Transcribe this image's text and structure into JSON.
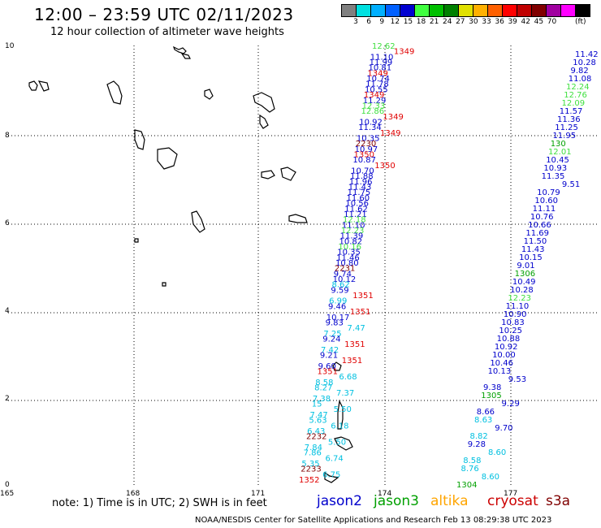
{
  "header": {
    "title": "12:00 – 23:59 UTC 02/11/2023",
    "subtitle": "12 hour collection of altimeter wave heights"
  },
  "colorbar": {
    "colors": [
      "#808080",
      "#00e0e0",
      "#00b0ff",
      "#0060ff",
      "#0000d0",
      "#40ff40",
      "#00c000",
      "#008000",
      "#e0e000",
      "#ffb000",
      "#ff6000",
      "#ff0000",
      "#c00000",
      "#800000",
      "#a000a0",
      "#ff00ff",
      "#000000"
    ],
    "labels": [
      "3",
      "6",
      "9",
      "12",
      "15",
      "18",
      "21",
      "24",
      "27",
      "30",
      "33",
      "36",
      "39",
      "42",
      "45",
      "70"
    ],
    "unit": "(ft)"
  },
  "axes": {
    "y_labels": [
      "10",
      "8",
      "6",
      "4",
      "2",
      "0"
    ],
    "x_labels": [
      "165",
      "168",
      "171",
      "174",
      "177"
    ]
  },
  "satellites": [
    {
      "name": "jason2",
      "color": "#0000cc"
    },
    {
      "name": "jason3",
      "color": "#00a000"
    },
    {
      "name": "altika",
      "color": "#ffa500"
    },
    {
      "name": "cryosat",
      "color": "#cc0000"
    },
    {
      "name": "s3a",
      "color": "#800000"
    }
  ],
  "note": "note:  1) Time is in UTC; 2) SWH is in feet",
  "footer": "NOAA/NESDIS Center for Satellite Applications and Research    Feb 13 08:29:38 UTC 2023",
  "map_labels": {
    "track_a": [
      {
        "t": "12.62",
        "c": "#40e040"
      },
      {
        "t": "1349",
        "c": "#e00000"
      },
      {
        "t": "11.10",
        "c": "#0000cc"
      },
      {
        "t": "11.99",
        "c": "#0000cc"
      },
      {
        "t": "10.81",
        "c": "#0000cc"
      },
      {
        "t": "1349",
        "c": "#e00000"
      },
      {
        "t": "10.74",
        "c": "#0000cc"
      },
      {
        "t": "11.78",
        "c": "#0000cc"
      },
      {
        "t": "10.55",
        "c": "#0000cc"
      },
      {
        "t": "1349",
        "c": "#e00000"
      },
      {
        "t": "11.29",
        "c": "#0000cc"
      },
      {
        "t": "12.33",
        "c": "#40e040"
      },
      {
        "t": "12.86",
        "c": "#40e040"
      },
      {
        "t": "1349",
        "c": "#e00000"
      },
      {
        "t": "10.92",
        "c": "#0000cc"
      },
      {
        "t": "11.34",
        "c": "#0000cc"
      },
      {
        "t": "1349",
        "c": "#e00000"
      },
      {
        "t": "10.35",
        "c": "#0000cc"
      },
      {
        "t": "2230",
        "c": "#800000"
      },
      {
        "t": "10.97",
        "c": "#0000cc"
      },
      {
        "t": "1350",
        "c": "#e00000"
      },
      {
        "t": "10.87",
        "c": "#0000cc"
      },
      {
        "t": "1350",
        "c": "#e00000"
      },
      {
        "t": "10.70",
        "c": "#0000cc"
      },
      {
        "t": "11.88",
        "c": "#0000cc"
      },
      {
        "t": "11.96",
        "c": "#0000cc"
      },
      {
        "t": "11.43",
        "c": "#0000cc"
      },
      {
        "t": "11.75",
        "c": "#0000cc"
      },
      {
        "t": "11.60",
        "c": "#0000cc"
      },
      {
        "t": "10.56",
        "c": "#0000cc"
      },
      {
        "t": "11.62",
        "c": "#0000cc"
      },
      {
        "t": "11.21",
        "c": "#0000cc"
      },
      {
        "t": "12.18",
        "c": "#40e040"
      },
      {
        "t": "11.10",
        "c": "#0000cc"
      },
      {
        "t": "12.23",
        "c": "#40e040"
      },
      {
        "t": "11.39",
        "c": "#0000cc"
      },
      {
        "t": "10.82",
        "c": "#0000cc"
      },
      {
        "t": "10.16",
        "c": "#40e040"
      },
      {
        "t": "10.35",
        "c": "#0000cc"
      },
      {
        "t": "11.46",
        "c": "#0000cc"
      },
      {
        "t": "10.80",
        "c": "#0000cc"
      },
      {
        "t": "2231",
        "c": "#800000"
      },
      {
        "t": "9.74",
        "c": "#0000cc"
      },
      {
        "t": "10.12",
        "c": "#0000cc"
      },
      {
        "t": "8.62",
        "c": "#00c0e0"
      },
      {
        "t": "9.59",
        "c": "#0000cc"
      },
      {
        "t": "1351",
        "c": "#e00000"
      },
      {
        "t": "6.99",
        "c": "#00c0e0"
      },
      {
        "t": "9.46",
        "c": "#0000cc"
      },
      {
        "t": "1351",
        "c": "#e00000"
      },
      {
        "t": "10.17",
        "c": "#0000cc"
      },
      {
        "t": "9.83",
        "c": "#0000cc"
      },
      {
        "t": "7.47",
        "c": "#00c0e0"
      },
      {
        "t": "7.25",
        "c": "#00c0e0"
      },
      {
        "t": "9.24",
        "c": "#0000cc"
      },
      {
        "t": "1351",
        "c": "#e00000"
      },
      {
        "t": "7.42",
        "c": "#00c0e0"
      },
      {
        "t": "9.21",
        "c": "#0000cc"
      },
      {
        "t": "1351",
        "c": "#e00000"
      },
      {
        "t": "9.60",
        "c": "#0000cc"
      },
      {
        "t": "1351",
        "c": "#e00000"
      },
      {
        "t": "6.68",
        "c": "#00c0e0"
      },
      {
        "t": "8.58",
        "c": "#00c0e0"
      },
      {
        "t": "8.27",
        "c": "#00c0e0"
      },
      {
        "t": "7.37",
        "c": "#00c0e0"
      },
      {
        "t": "7.38",
        "c": "#00c0e0"
      },
      {
        "t": "15",
        "c": "#00c0e0"
      },
      {
        "t": "5.50",
        "c": "#00c0e0"
      },
      {
        "t": "7.47",
        "c": "#00c0e0"
      },
      {
        "t": "5.63",
        "c": "#00c0e0"
      },
      {
        "t": "6.18",
        "c": "#00c0e0"
      },
      {
        "t": "6.43",
        "c": "#00c0e0"
      },
      {
        "t": "2232",
        "c": "#800000"
      },
      {
        "t": "5.50",
        "c": "#00c0e0"
      },
      {
        "t": "7.84",
        "c": "#00c0e0"
      },
      {
        "t": "7.86",
        "c": "#00c0e0"
      },
      {
        "t": "6.74",
        "c": "#00c0e0"
      },
      {
        "t": "5.35",
        "c": "#00c0e0"
      },
      {
        "t": "2233",
        "c": "#800000"
      },
      {
        "t": "6.75",
        "c": "#00c0e0"
      },
      {
        "t": "1352",
        "c": "#e00000"
      }
    ],
    "track_b": [
      {
        "t": "11.42",
        "c": "#0000cc"
      },
      {
        "t": "10.28",
        "c": "#0000cc"
      },
      {
        "t": "9.82",
        "c": "#0000cc"
      },
      {
        "t": "11.08",
        "c": "#0000cc"
      },
      {
        "t": "12.24",
        "c": "#40e040"
      },
      {
        "t": "12.76",
        "c": "#40e040"
      },
      {
        "t": "12.09",
        "c": "#40e040"
      },
      {
        "t": "11.57",
        "c": "#0000cc"
      },
      {
        "t": "11.36",
        "c": "#0000cc"
      },
      {
        "t": "11.25",
        "c": "#0000cc"
      },
      {
        "t": "11.95",
        "c": "#0000cc"
      },
      {
        "t": "130",
        "c": "#00a000"
      },
      {
        "t": "12.01",
        "c": "#40e040"
      },
      {
        "t": "10.45",
        "c": "#0000cc"
      },
      {
        "t": "10.93",
        "c": "#0000cc"
      },
      {
        "t": "11.35",
        "c": "#0000cc"
      },
      {
        "t": "9.51",
        "c": "#0000cc"
      },
      {
        "t": "10.79",
        "c": "#0000cc"
      },
      {
        "t": "10.60",
        "c": "#0000cc"
      },
      {
        "t": "11.11",
        "c": "#0000cc"
      },
      {
        "t": "10.76",
        "c": "#0000cc"
      },
      {
        "t": "10.66",
        "c": "#0000cc"
      },
      {
        "t": "11.69",
        "c": "#0000cc"
      },
      {
        "t": "11.50",
        "c": "#0000cc"
      },
      {
        "t": "11.43",
        "c": "#0000cc"
      },
      {
        "t": "10.15",
        "c": "#0000cc"
      },
      {
        "t": "9.01",
        "c": "#0000cc"
      },
      {
        "t": "1306",
        "c": "#00a000"
      },
      {
        "t": "10.49",
        "c": "#0000cc"
      },
      {
        "t": "10.28",
        "c": "#0000cc"
      },
      {
        "t": "12.23",
        "c": "#40e040"
      },
      {
        "t": "11.10",
        "c": "#0000cc"
      },
      {
        "t": "10.90",
        "c": "#0000cc"
      },
      {
        "t": "10.83",
        "c": "#0000cc"
      },
      {
        "t": "10.25",
        "c": "#0000cc"
      },
      {
        "t": "10.88",
        "c": "#0000cc"
      },
      {
        "t": "10.92",
        "c": "#0000cc"
      },
      {
        "t": "10.00",
        "c": "#0000cc"
      },
      {
        "t": "10.46",
        "c": "#0000cc"
      },
      {
        "t": "10.13",
        "c": "#0000cc"
      },
      {
        "t": "9.53",
        "c": "#0000cc"
      },
      {
        "t": "9.38",
        "c": "#0000cc"
      },
      {
        "t": "1305",
        "c": "#00a000"
      },
      {
        "t": "9.29",
        "c": "#0000cc"
      },
      {
        "t": "8.66",
        "c": "#0000cc"
      },
      {
        "t": "8.63",
        "c": "#00c0e0"
      },
      {
        "t": "9.70",
        "c": "#0000cc"
      },
      {
        "t": "8.82",
        "c": "#00c0e0"
      },
      {
        "t": "9.28",
        "c": "#0000cc"
      },
      {
        "t": "8.60",
        "c": "#00c0e0"
      },
      {
        "t": "8.58",
        "c": "#00c0e0"
      },
      {
        "t": "8.76",
        "c": "#00c0e0"
      },
      {
        "t": "8.60",
        "c": "#00c0e0"
      },
      {
        "t": "1304",
        "c": "#00a000"
      }
    ]
  }
}
